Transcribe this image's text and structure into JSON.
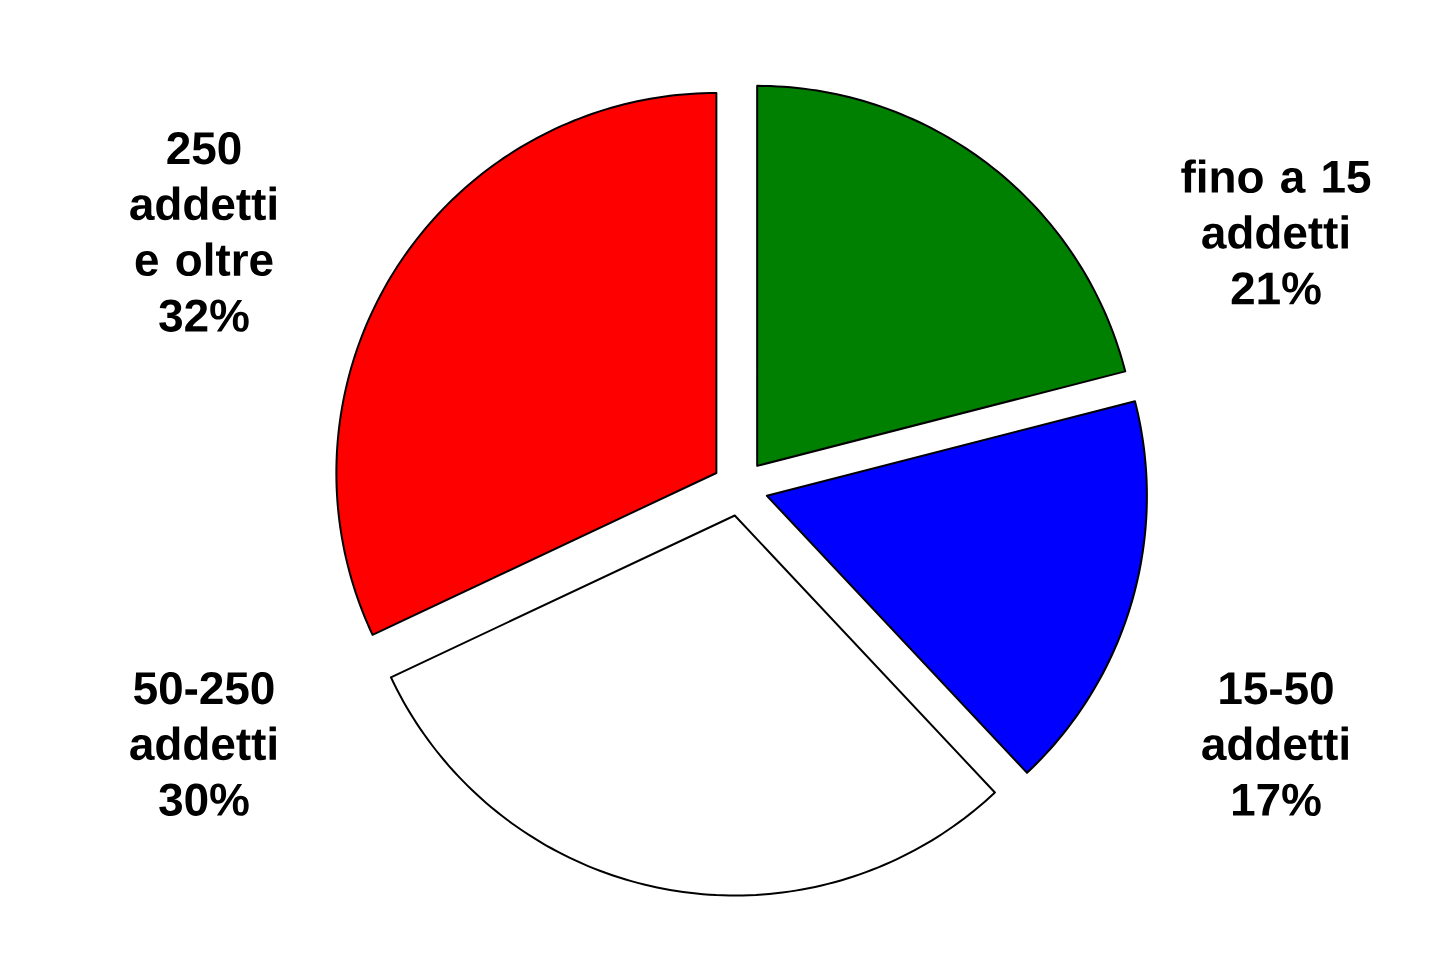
{
  "chart_data": {
    "type": "pie",
    "categories": [
      "fino a 15 addetti",
      "15-50 addetti",
      "50-250 addetti",
      "250 addetti e oltre"
    ],
    "values": [
      21,
      17,
      30,
      32
    ],
    "value_labels": [
      "21%",
      "17%",
      "30%",
      "32%"
    ],
    "colors": [
      "#008000",
      "#0000ff",
      "#ffffff",
      "#ff0000"
    ]
  }
}
